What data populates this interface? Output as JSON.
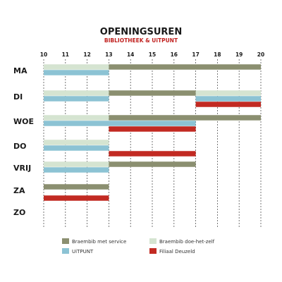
{
  "chart_data": {
    "type": "bar",
    "title": "OPENINGSUREN",
    "subtitle": "BIBLIOTHEEK & UiTPUNT",
    "x_ticks": [
      10,
      11,
      12,
      13,
      14,
      15,
      16,
      17,
      18,
      19,
      20
    ],
    "xlim": [
      10,
      20
    ],
    "grid": true,
    "legend_position": "bottom",
    "days": [
      "MA",
      "DI",
      "WOE",
      "DO",
      "VRIJ",
      "ZA",
      "ZO"
    ],
    "series": [
      {
        "name": "Braembib met service",
        "color": "#8b8f70",
        "slot": "top",
        "intervals": {
          "MA": [
            13,
            20
          ],
          "DI": [
            13,
            17
          ],
          "WOE": [
            13,
            20
          ],
          "VRIJ": [
            13,
            17
          ],
          "ZA": [
            10,
            13
          ]
        }
      },
      {
        "name": "Braembib doe-het-zelf",
        "color": "#d5e4d1",
        "slot": "top",
        "intervals": {
          "MA": [
            10,
            13
          ],
          "DI": [
            10,
            13,
            17,
            20
          ],
          "WOE": [
            10,
            13
          ],
          "DO": [
            10,
            13
          ],
          "VRIJ": [
            10,
            13
          ]
        }
      },
      {
        "name": "UiTPUNT",
        "color": "#8cc3d4",
        "slot": "middle",
        "intervals": {
          "MA": [
            10,
            13
          ],
          "DI": [
            10,
            13,
            17,
            20
          ],
          "WOE": [
            10,
            17
          ],
          "DO": [
            10,
            13
          ],
          "VRIJ": [
            10,
            13
          ]
        }
      },
      {
        "name": "Filiaal Deuzeld",
        "color": "#c22a22",
        "slot": "bottom",
        "intervals": {
          "DI": [
            17,
            20
          ],
          "WOE": [
            13,
            17
          ],
          "DO": [
            13,
            17
          ],
          "ZA": [
            10,
            13
          ]
        }
      }
    ]
  }
}
